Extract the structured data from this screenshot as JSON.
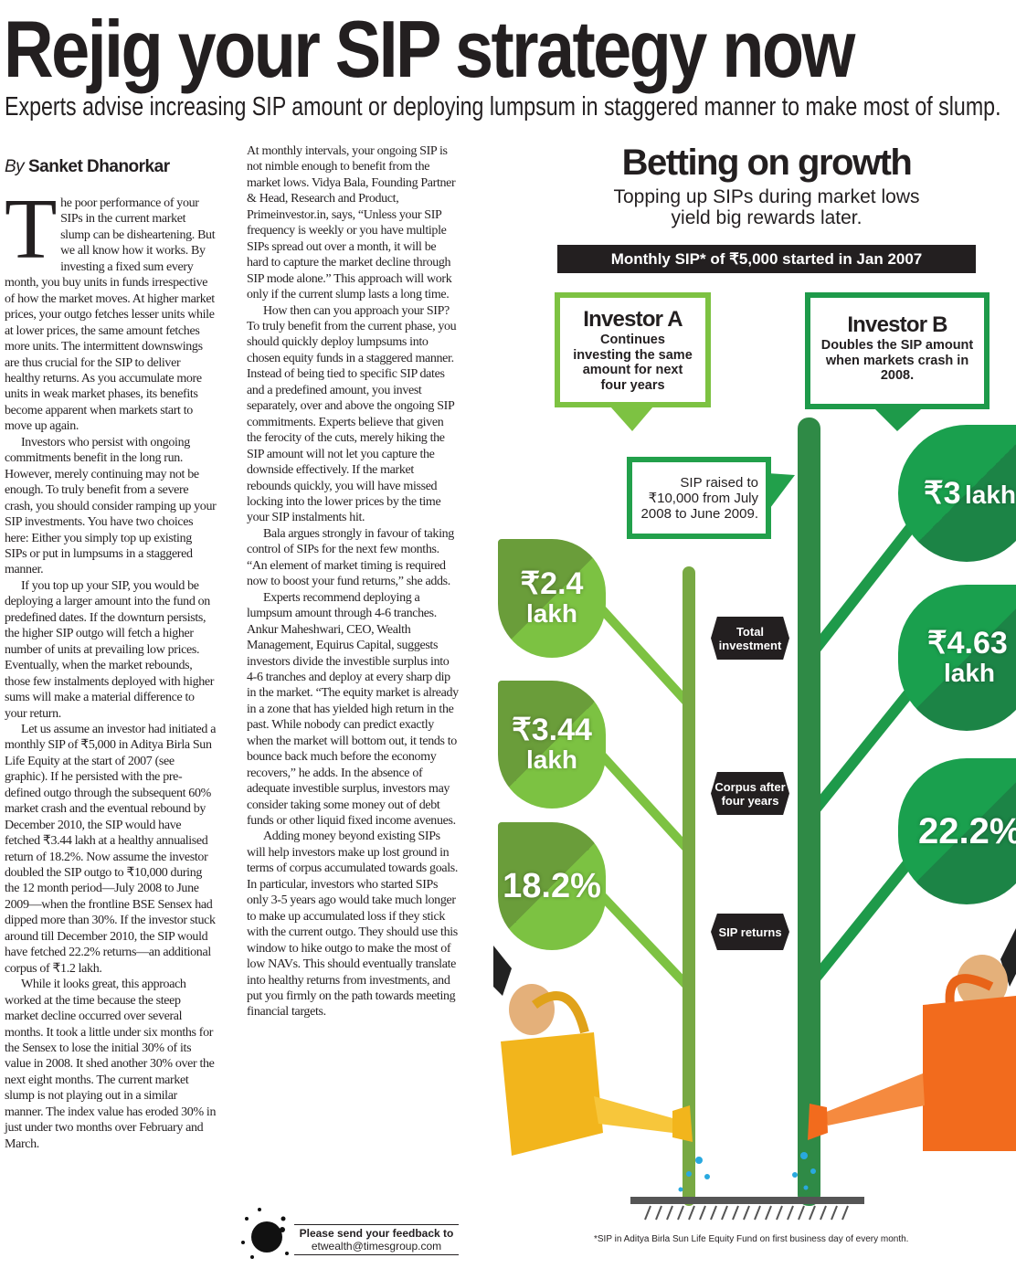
{
  "headline": "Rejig your SIP strategy now",
  "standfirst": "Experts advise increasing SIP amount or deploying lumpsum in staggered manner to make most of slump.",
  "byline": {
    "prefix": "By",
    "author": "Sanket Dhanorkar"
  },
  "article": {
    "dropcap": "T",
    "col1": [
      "he poor performance of your SIPs in the current market slump can be disheartening. But we all know how it works. By investing a fixed sum every month, you buy units in funds irrespective of how the market moves. At higher market prices, your outgo fetches lesser units while at lower prices, the same amount fetches more units. The intermittent downswings are thus crucial for the SIP to deliver healthy returns. As you accumulate more units in weak market phases, its benefits become apparent when markets start to move up again.",
      "Investors who persist with ongoing commitments benefit in the long run. However, merely continuing may not be enough. To truly benefit from a severe crash, you should consider ramping up your SIP investments. You have two choices here: Either you simply top up existing SIPs or put in lumpsums in a staggered manner.",
      "If you top up your SIP, you would be deploying a larger amount into the fund on predefined dates. If the downturn persists, the higher SIP outgo will fetch a higher number of units at prevailing low prices. Eventually, when the market rebounds, those few instalments deployed with higher sums will make a material difference to your return.",
      "Let us assume an investor had initiated a monthly SIP of ₹5,000 in Aditya Birla Sun Life Equity at the start of 2007 (see graphic). If he persisted with the pre-defined outgo through the subsequent 60% market crash and the eventual rebound by December 2010, the SIP would have fetched ₹3.44 lakh at a healthy annualised return of 18.2%. Now assume the investor doubled the SIP outgo to ₹10,000 during the 12 month period—July 2008 to June 2009—when the frontline BSE Sensex had dipped more than 30%. If the investor stuck around till December 2010, the SIP would have fetched 22.2% returns—an additional corpus of ₹1.2 lakh.",
      "While it looks great, this approach worked at the time because the steep market decline occurred over several months. It took a little under six months for the Sensex to lose the initial 30% of its value in 2008. It shed another 30% over the next eight months. The current market slump is not playing out in a similar manner. The index value has eroded 30% in just under two months over February and March."
    ],
    "col2": [
      "At monthly intervals, your ongoing SIP is not nimble enough to benefit from the market lows. Vidya Bala, Founding Partner & Head, Research and Product, Primeinvestor.in, says, “Unless your SIP frequency is weekly or you have multiple SIPs spread out over a month, it will be hard to capture the market decline through SIP mode alone.” This approach will work only if the current slump lasts a long time.",
      "How then can you approach your SIP? To truly benefit from the current phase, you should quickly deploy lumpsums into chosen equity funds in a staggered manner. Instead of being tied to specific SIP dates and a predefined amount, you invest separately, over and above the ongoing SIP commitments. Experts believe that given the ferocity of the cuts, merely hiking the SIP amount will not let you capture the downside effectively. If the market rebounds quickly, you will have missed locking into the lower prices by the time your SIP instalments hit.",
      "Bala argues strongly in favour of taking control of SIPs for the next few months. “An element of market timing is required now to boost your fund returns,” she adds.",
      "Experts recommend deploying a lumpsum amount through 4-6 tranches. Ankur Maheshwari, CEO, Wealth Management, Equirus Capital, suggests investors divide the investible surplus into 4-6 tranches and deploy at every sharp dip in the market. “The equity market is already in a zone that has yielded high return in the past. While nobody can predict exactly when the market will bottom out, it tends to bounce back much before the economy recovers,” he adds. In the absence of adequate investible surplus, investors may consider taking some money out of debt funds or other liquid fixed income avenues.",
      "Adding money beyond existing SIPs will help investors make up lost ground in terms of corpus accumulated towards goals. In particular, investors who started SIPs only 3-5 years ago would take much longer to make up accumulated loss if they stick with the current outgo. They should use this window to hike outgo to make the most of low NAVs. This should eventually translate into healthy returns from investments, and put you firmly on the path towards meeting financial targets."
    ]
  },
  "feedback": {
    "line1": "Please send your feedback to",
    "email": "etwealth@timesgroup.com"
  },
  "graphic": {
    "title": "Betting on growth",
    "subtitle_1": "Topping up SIPs during market lows",
    "subtitle_2": "yield big rewards later.",
    "bar": "Monthly SIP* of ₹5,000 started in Jan 2007",
    "investor_a": {
      "name": "Investor A",
      "desc": "Continues investing the same amount for next four years"
    },
    "investor_b": {
      "name": "Investor B",
      "desc": "Doubles the SIP amount when markets crash in 2008."
    },
    "sip_raised": "SIP raised to ₹10,000 from July 2008 to June 2009.",
    "labels": {
      "total": "Total investment",
      "corpus": "Corpus after four years",
      "returns": "SIP returns"
    },
    "a_values": {
      "total_v": "₹2.4",
      "total_u": "lakh",
      "corpus_v": "₹3.44",
      "corpus_u": "lakh",
      "returns": "18.2%"
    },
    "b_values": {
      "total_v": "₹3",
      "total_u": "lakh",
      "corpus_v": "₹4.63",
      "corpus_u": "lakh",
      "returns": "22.2%"
    },
    "footnote": "*SIP in Aditya Birla Sun Life Equity Fund on first business day of every month.",
    "colors": {
      "investor_a": "#7dc242",
      "investor_b": "#1e9a4a",
      "can_a": "#f2b51c",
      "can_b": "#f26b1d"
    }
  }
}
